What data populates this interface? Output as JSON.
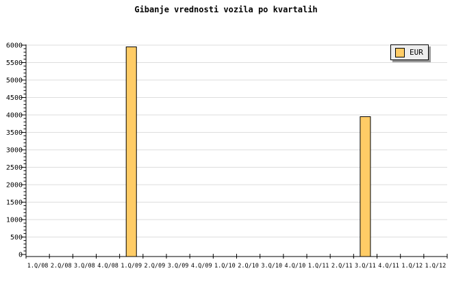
{
  "title": "Gibanje vrednosti vozila po kvartalih",
  "legend": {
    "label": "EUR",
    "swatch_color": "#FFCC66",
    "position": "top-right"
  },
  "colors": {
    "background": "#FFFFFF",
    "bar_fill": "#FFCC66",
    "bar_border": "#000000",
    "gridline": "#DDDDDD",
    "axis": "#000000",
    "text": "#000000",
    "legend_bg": "#EEEEEE",
    "legend_shadow": "#999999"
  },
  "chart_data": {
    "type": "bar",
    "title": "Gibanje vrednosti vozila po kvartalih",
    "categories": [
      "1.Q/08",
      "2.Q/08",
      "3.Q/08",
      "4.Q/08",
      "1.Q/09",
      "2.Q/09",
      "3.Q/09",
      "4.Q/09",
      "1.Q/10",
      "2.Q/10",
      "3.Q/10",
      "4.Q/10",
      "1.Q/11",
      "2.Q/11",
      "3.Q/11",
      "4.Q/11",
      "1.Q/12",
      "1.Q/12"
    ],
    "series": [
      {
        "name": "EUR",
        "values": [
          null,
          null,
          null,
          null,
          5950,
          null,
          null,
          null,
          null,
          null,
          null,
          null,
          null,
          null,
          3950,
          null,
          null,
          null
        ]
      }
    ],
    "xlabel": "",
    "ylabel": "",
    "ylim": [
      0,
      6000
    ],
    "ytick_step": 500,
    "y_minor_tick_step": 100,
    "grid": "horizontal",
    "legend_position": "top-right"
  }
}
